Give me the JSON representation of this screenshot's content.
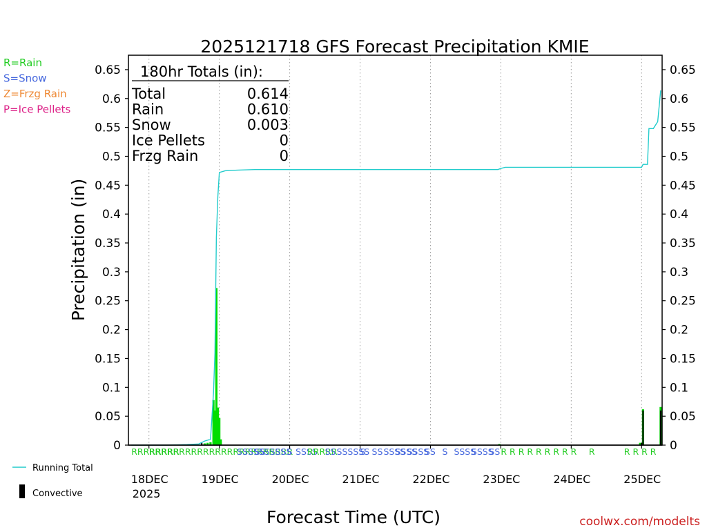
{
  "chart_data": {
    "type": "bar",
    "title": "2025121718 GFS Forecast Precipitation KMIE",
    "xlabel": "Forecast Time (UTC)",
    "ylabel": "Precipitation (in)",
    "ylim": [
      0,
      0.675
    ],
    "yticks": [
      0,
      0.05,
      0.1,
      0.15,
      0.2,
      0.25,
      0.3,
      0.35,
      0.4,
      0.45,
      0.5,
      0.55,
      0.6,
      0.65
    ],
    "ytick_labels": [
      "0",
      "0.05",
      "0.1",
      "0.15",
      "0.2",
      "0.25",
      "0.3",
      "0.35",
      "0.4",
      "0.45",
      "0.5",
      "0.55",
      "0.6",
      "0.65"
    ],
    "xlim_hours": [
      -1,
      181
    ],
    "xticks": [
      {
        "hour": 6,
        "label": "18DEC",
        "sublabel": "2025"
      },
      {
        "hour": 30,
        "label": "19DEC",
        "sublabel": ""
      },
      {
        "hour": 54,
        "label": "20DEC",
        "sublabel": ""
      },
      {
        "hour": 78,
        "label": "21DEC",
        "sublabel": ""
      },
      {
        "hour": 102,
        "label": "22DEC",
        "sublabel": ""
      },
      {
        "hour": 126,
        "label": "23DEC",
        "sublabel": ""
      },
      {
        "hour": 150,
        "label": "24DEC",
        "sublabel": ""
      },
      {
        "hour": 174,
        "label": "25DEC",
        "sublabel": ""
      }
    ],
    "grid": true,
    "totals_box": {
      "heading": "180hr Totals (in):",
      "rows": [
        {
          "label": "Total",
          "value": "0.614"
        },
        {
          "label": "Rain",
          "value": "0.610"
        },
        {
          "label": "Snow",
          "value": "0.003"
        },
        {
          "label": "Ice Pellets",
          "value": "0"
        },
        {
          "label": "Frzg Rain",
          "value": "0"
        }
      ]
    },
    "type_legend": [
      {
        "text": "R=Rain",
        "color": "#22cc22"
      },
      {
        "text": "S=Snow",
        "color": "#4466dd"
      },
      {
        "text": "Z=Frzg Rain",
        "color": "#ee8833"
      },
      {
        "text": "P=Ice Pellets",
        "color": "#dd2288"
      }
    ],
    "series_legend": [
      {
        "name": "Running Total",
        "color": "#22cccc"
      },
      {
        "name": "Convective",
        "color": "#000000"
      }
    ],
    "bars": [
      {
        "hour": 25,
        "value": 0.003
      },
      {
        "hour": 26,
        "value": 0.004
      },
      {
        "hour": 27,
        "value": 0.005
      },
      {
        "hour": 28,
        "value": 0.078
      },
      {
        "hour": 28.5,
        "value": 0.06
      },
      {
        "hour": 29,
        "value": 0.272
      },
      {
        "hour": 29.5,
        "value": 0.065
      },
      {
        "hour": 30,
        "value": 0.047
      },
      {
        "hour": 30.5,
        "value": 0.01
      },
      {
        "hour": 125.5,
        "value": 0.002
      },
      {
        "hour": 173.5,
        "value": 0.004
      },
      {
        "hour": 174.5,
        "value": 0.062
      },
      {
        "hour": 180.5,
        "value": 0.066
      }
    ],
    "convective": [
      {
        "hour": 24,
        "value": 0.004
      },
      {
        "hour": 174,
        "value": 0.004
      },
      {
        "hour": 174.5,
        "value": 0.06
      },
      {
        "hour": 180.5,
        "value": 0.06
      }
    ],
    "running_total": [
      {
        "hour": 0,
        "value": 0
      },
      {
        "hour": 12,
        "value": 0
      },
      {
        "hour": 19,
        "value": 0.001
      },
      {
        "hour": 23,
        "value": 0.002
      },
      {
        "hour": 25,
        "value": 0.007
      },
      {
        "hour": 27,
        "value": 0.01
      },
      {
        "hour": 28,
        "value": 0.09
      },
      {
        "hour": 28.5,
        "value": 0.16
      },
      {
        "hour": 29,
        "value": 0.36
      },
      {
        "hour": 29.5,
        "value": 0.43
      },
      {
        "hour": 30,
        "value": 0.472
      },
      {
        "hour": 32,
        "value": 0.475
      },
      {
        "hour": 36,
        "value": 0.476
      },
      {
        "hour": 42,
        "value": 0.477
      },
      {
        "hour": 125,
        "value": 0.477
      },
      {
        "hour": 126,
        "value": 0.479
      },
      {
        "hour": 127.5,
        "value": 0.481
      },
      {
        "hour": 174,
        "value": 0.481
      },
      {
        "hour": 174.5,
        "value": 0.486
      },
      {
        "hour": 176,
        "value": 0.486
      },
      {
        "hour": 176.5,
        "value": 0.548
      },
      {
        "hour": 178,
        "value": 0.548
      },
      {
        "hour": 179.5,
        "value": 0.56
      },
      {
        "hour": 180.5,
        "value": 0.614
      }
    ],
    "type_labels": [
      {
        "hour": 0,
        "text": "RRRRRRRR",
        "color": "#22cc22"
      },
      {
        "hour": 6,
        "text": "RRRRRRRRRRRRRRRRRRRRRRRR",
        "color": "#22cc22"
      },
      {
        "hour": 36,
        "text": "SSSSSSSSSS",
        "color": "#4466dd"
      },
      {
        "hour": 42,
        "text": "SS",
        "color": "#4466dd"
      },
      {
        "hour": 49,
        "text": "SS",
        "color": "#4466dd"
      },
      {
        "hour": 53,
        "text": "S",
        "color": "#4466dd"
      },
      {
        "hour": 56,
        "text": "SSSS",
        "color": "#4466dd"
      },
      {
        "hour": 60,
        "text": "RRRRR",
        "color": "#22cc22"
      },
      {
        "hour": 66,
        "text": "SS",
        "color": "#4466dd"
      },
      {
        "hour": 70,
        "text": "SSSSSS",
        "color": "#4466dd"
      },
      {
        "hour": 78,
        "text": "S",
        "color": "#4466dd"
      },
      {
        "hour": 82,
        "text": "SS",
        "color": "#4466dd"
      },
      {
        "hour": 86,
        "text": "SSSS",
        "color": "#4466dd"
      },
      {
        "hour": 90,
        "text": "SSSS",
        "color": "#4466dd"
      },
      {
        "hour": 94,
        "text": "SSSS",
        "color": "#4466dd"
      },
      {
        "hour": 100,
        "text": "SS",
        "color": "#4466dd"
      },
      {
        "hour": 106,
        "text": "S",
        "color": "#4466dd"
      },
      {
        "hour": 110,
        "text": "SSSS",
        "color": "#4466dd"
      },
      {
        "hour": 116,
        "text": "SSSS",
        "color": "#4466dd"
      },
      {
        "hour": 122,
        "text": "SS",
        "color": "#4466dd"
      },
      {
        "hour": 126,
        "text": "R R R R R R R R R",
        "color": "#22cc22"
      },
      {
        "hour": 156,
        "text": "R",
        "color": "#22cc22"
      },
      {
        "hour": 168,
        "text": "R R R R",
        "color": "#22cc22"
      }
    ],
    "credit": "coolwx.com/modelts"
  }
}
